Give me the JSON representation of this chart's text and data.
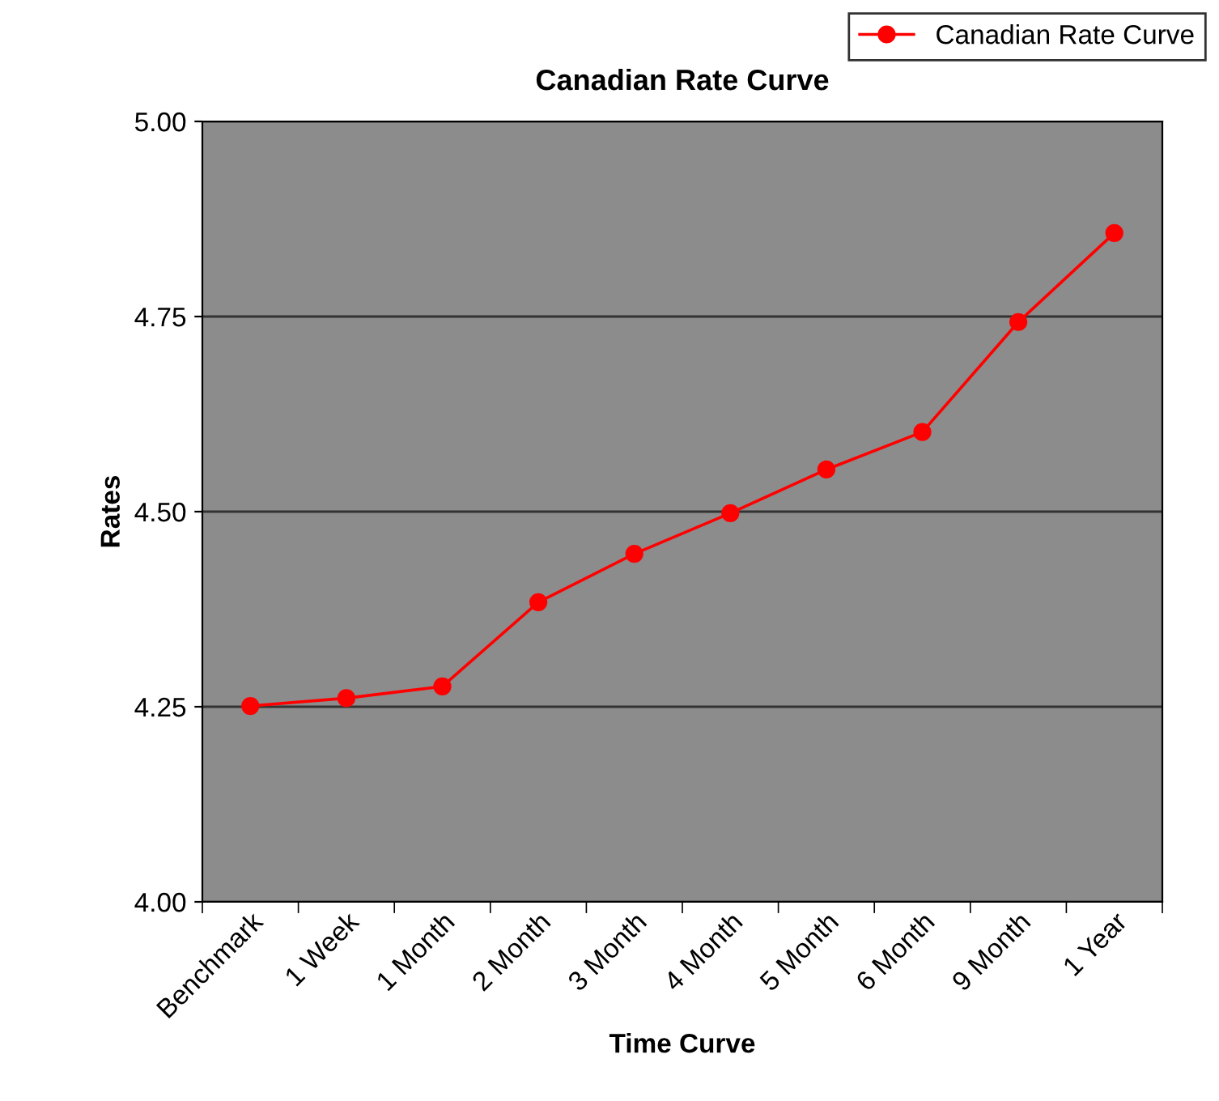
{
  "chart_data": {
    "type": "line",
    "title": "Canadian Rate Curve",
    "xlabel": "Time Curve",
    "ylabel": "Rates",
    "categories": [
      "Benchmark",
      "1 Week",
      "1 Month",
      "2 Month",
      "3 Month",
      "4 Month",
      "5 Month",
      "6 Month",
      "9 Month",
      "1 Year"
    ],
    "series": [
      {
        "name": "Canadian Rate Curve",
        "color": "#ff0000",
        "values": [
          4.251,
          4.261,
          4.276,
          4.384,
          4.446,
          4.498,
          4.554,
          4.602,
          4.743,
          4.857
        ]
      }
    ],
    "ylim": [
      4.0,
      5.0
    ],
    "yticks": [
      {
        "value": 4.0,
        "label": "4.00"
      },
      {
        "value": 4.25,
        "label": "4.25"
      },
      {
        "value": 4.5,
        "label": "4.50"
      },
      {
        "value": 4.75,
        "label": "4.75"
      },
      {
        "value": 5.0,
        "label": "5.00"
      }
    ],
    "grid": "y",
    "legend": "top right",
    "marker": "circle",
    "line_style": "solid"
  }
}
